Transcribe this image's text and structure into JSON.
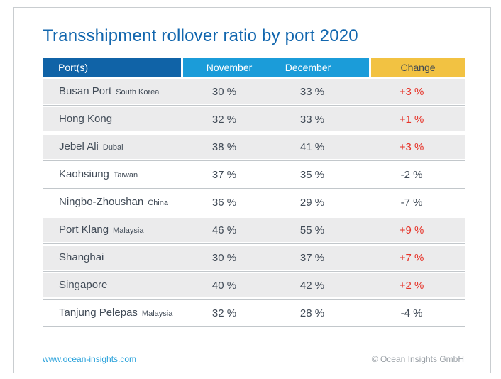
{
  "title": "Transshipment rollover ratio by port 2020",
  "table": {
    "headers": {
      "port": "Port(s)",
      "november": "November",
      "december": "December",
      "change": "Change"
    },
    "rows": [
      {
        "port": "Busan Port",
        "country": "South Korea",
        "november": "30 %",
        "december": "33 %",
        "change": "+3 %",
        "positive": true
      },
      {
        "port": "Hong Kong",
        "country": "",
        "november": "32 %",
        "december": "33 %",
        "change": "+1 %",
        "positive": true
      },
      {
        "port": "Jebel Ali",
        "country": "Dubai",
        "november": "38 %",
        "december": "41 %",
        "change": "+3 %",
        "positive": true
      },
      {
        "port": "Kaohsiung",
        "country": "Taiwan",
        "november": "37 %",
        "december": "35 %",
        "change": "-2 %",
        "positive": false
      },
      {
        "port": "Ningbo-Zhoushan",
        "country": "China",
        "november": "36 %",
        "december": "29 %",
        "change": "-7 %",
        "positive": false
      },
      {
        "port": "Port Klang",
        "country": "Malaysia",
        "november": "46 %",
        "december": "55 %",
        "change": "+9 %",
        "positive": true
      },
      {
        "port": "Shanghai",
        "country": "",
        "november": "30 %",
        "december": "37 %",
        "change": "+7 %",
        "positive": true
      },
      {
        "port": "Singapore",
        "country": "",
        "november": "40 %",
        "december": "42 %",
        "change": "+2 %",
        "positive": true
      },
      {
        "port": "Tanjung Pelepas",
        "country": "Malaysia",
        "november": "32 %",
        "december": "28 %",
        "change": "-4 %",
        "positive": false
      }
    ]
  },
  "footer": {
    "website": "www.ocean-insights.com",
    "copyright": "© Ocean Insights GmbH"
  },
  "colors": {
    "title": "#1166ae",
    "header_port_bg": "#1063a7",
    "header_months_bg": "#1b9cd9",
    "header_change_bg": "#f2c242",
    "positive_change": "#e63329",
    "row_highlight_bg": "#ebebec",
    "text": "#414b57",
    "link": "#2aa2db"
  },
  "chart_data": {
    "type": "table",
    "title": "Transshipment rollover ratio by port 2020",
    "columns": [
      "Port(s)",
      "November",
      "December",
      "Change"
    ],
    "rows": [
      {
        "port": "Busan Port",
        "location": "South Korea",
        "november_pct": 30,
        "december_pct": 33,
        "change_pct": 3
      },
      {
        "port": "Hong Kong",
        "location": null,
        "november_pct": 32,
        "december_pct": 33,
        "change_pct": 1
      },
      {
        "port": "Jebel Ali",
        "location": "Dubai",
        "november_pct": 38,
        "december_pct": 41,
        "change_pct": 3
      },
      {
        "port": "Kaohsiung",
        "location": "Taiwan",
        "november_pct": 37,
        "december_pct": 35,
        "change_pct": -2
      },
      {
        "port": "Ningbo-Zhoushan",
        "location": "China",
        "november_pct": 36,
        "december_pct": 29,
        "change_pct": -7
      },
      {
        "port": "Port Klang",
        "location": "Malaysia",
        "november_pct": 46,
        "december_pct": 55,
        "change_pct": 9
      },
      {
        "port": "Shanghai",
        "location": null,
        "november_pct": 30,
        "december_pct": 37,
        "change_pct": 7
      },
      {
        "port": "Singapore",
        "location": null,
        "november_pct": 40,
        "december_pct": 42,
        "change_pct": 2
      },
      {
        "port": "Tanjung Pelepas",
        "location": "Malaysia",
        "november_pct": 32,
        "december_pct": 28,
        "change_pct": -4
      }
    ],
    "notes": "Rows with positive change are shaded gray and change value shown in red; negative change rows are white with gray text."
  }
}
